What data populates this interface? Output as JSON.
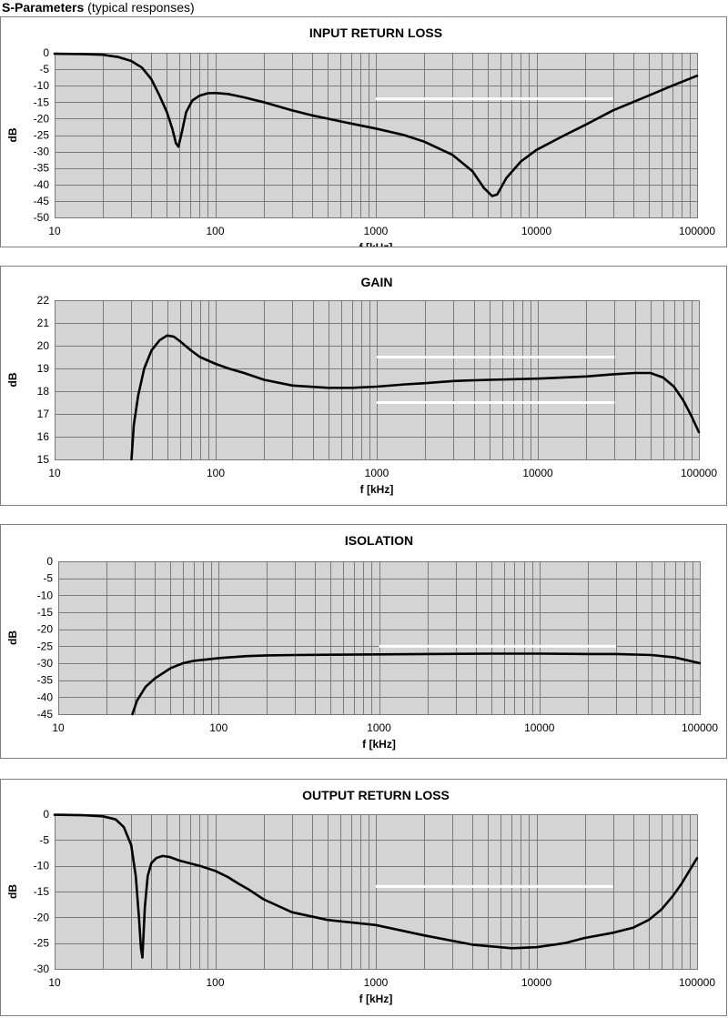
{
  "header": {
    "title": "S-Parameters",
    "subtitle": "(typical responses)"
  },
  "colors": {
    "plot_bg": "#d4d4d4",
    "grid": "#7a7a7a",
    "curve": "#000000",
    "limit_line": "#ffffff"
  },
  "chart_data": [
    {
      "type": "line",
      "title": "INPUT RETURN LOSS",
      "xlabel": "f [kHz]",
      "ylabel": "dB",
      "x_scale": "log",
      "xlim": [
        10,
        100000
      ],
      "x_ticks": [
        "10",
        "100",
        "1000",
        "10000",
        "100000"
      ],
      "ylim": [
        -50,
        0
      ],
      "y_ticks": [
        "0",
        "-5",
        "-10",
        "-15",
        "-20",
        "-25",
        "-30",
        "-35",
        "-40",
        "-45",
        "-50"
      ],
      "grid": true,
      "legend": "none",
      "series": [
        {
          "x": [
            10,
            15,
            20,
            25,
            30,
            35,
            40,
            45,
            50,
            54,
            57,
            59,
            62,
            66,
            72,
            80,
            90,
            100,
            120,
            150,
            200,
            300,
            400,
            500,
            700,
            1000,
            1500,
            2000,
            3000,
            4000,
            4700,
            5300,
            5700,
            6500,
            8000,
            10000,
            15000,
            20000,
            30000,
            50000,
            70000,
            100000
          ],
          "y": [
            -0.3,
            -0.4,
            -0.6,
            -1.3,
            -2.5,
            -4.5,
            -8,
            -13,
            -18,
            -23,
            -27.5,
            -28.5,
            -24,
            -18,
            -14.5,
            -13,
            -12.3,
            -12.2,
            -12.5,
            -13.5,
            -15,
            -17.5,
            -19,
            -20,
            -21.5,
            -23,
            -25,
            -27,
            -31,
            -36,
            -41,
            -43.5,
            -43,
            -38,
            -33,
            -29.5,
            -25,
            -22,
            -17.5,
            -13,
            -10,
            -7
          ]
        }
      ],
      "limit_lines": [
        {
          "x": [
            1000,
            30000
          ],
          "y": -14
        }
      ]
    },
    {
      "type": "line",
      "title": "GAIN",
      "xlabel": "f [kHz]",
      "ylabel": "dB",
      "x_scale": "log",
      "xlim": [
        10,
        100000
      ],
      "x_ticks": [
        "10",
        "100",
        "1000",
        "10000",
        "100000"
      ],
      "ylim": [
        15,
        22
      ],
      "y_ticks": [
        "22",
        "21",
        "20",
        "19",
        "18",
        "17",
        "16",
        "15"
      ],
      "grid": true,
      "legend": "none",
      "series": [
        {
          "x": [
            30,
            31,
            33,
            36,
            40,
            45,
            50,
            55,
            60,
            70,
            80,
            100,
            120,
            150,
            200,
            300,
            500,
            700,
            1000,
            1500,
            2000,
            3000,
            5000,
            10000,
            20000,
            30000,
            40000,
            50000,
            60000,
            70000,
            80000,
            90000,
            100000
          ],
          "y": [
            15,
            16.5,
            17.8,
            19,
            19.8,
            20.25,
            20.45,
            20.4,
            20.2,
            19.8,
            19.5,
            19.2,
            19,
            18.8,
            18.5,
            18.25,
            18.15,
            18.15,
            18.2,
            18.3,
            18.35,
            18.45,
            18.5,
            18.55,
            18.65,
            18.75,
            18.8,
            18.8,
            18.6,
            18.2,
            17.6,
            16.9,
            16.2
          ]
        }
      ],
      "limit_lines": [
        {
          "x": [
            1000,
            30000
          ],
          "y": 19.5
        },
        {
          "x": [
            1000,
            30000
          ],
          "y": 17.5
        }
      ]
    },
    {
      "type": "line",
      "title": "ISOLATION",
      "xlabel": "f [kHz]",
      "ylabel": "dB",
      "x_scale": "log",
      "xlim": [
        10,
        100000
      ],
      "x_ticks": [
        "10",
        "100",
        "1000",
        "10000",
        "100000"
      ],
      "ylim": [
        -45,
        0
      ],
      "y_ticks": [
        "0",
        "-5",
        "-10",
        "-15",
        "-20",
        "-25",
        "-30",
        "-35",
        "-40",
        "-45"
      ],
      "grid": true,
      "legend": "none",
      "series": [
        {
          "x": [
            29,
            31,
            35,
            40,
            50,
            60,
            70,
            100,
            150,
            200,
            300,
            500,
            1000,
            2000,
            5000,
            10000,
            20000,
            30000,
            50000,
            70000,
            100000
          ],
          "y": [
            -45,
            -41,
            -37,
            -34.5,
            -31.5,
            -30,
            -29.3,
            -28.5,
            -27.9,
            -27.7,
            -27.6,
            -27.5,
            -27.4,
            -27.3,
            -27.2,
            -27.2,
            -27.3,
            -27.3,
            -27.6,
            -28.3,
            -30
          ]
        }
      ],
      "limit_lines": [
        {
          "x": [
            1000,
            30000
          ],
          "y": -25
        }
      ]
    },
    {
      "type": "line",
      "title": "OUTPUT RETURN LOSS",
      "xlabel": "f [kHz]",
      "ylabel": "dB",
      "x_scale": "log",
      "xlim": [
        10,
        100000
      ],
      "x_ticks": [
        "10",
        "100",
        "1000",
        "10000",
        "100000"
      ],
      "ylim": [
        -30,
        0
      ],
      "y_ticks": [
        "0",
        "-5",
        "-10",
        "-15",
        "-20",
        "-25",
        "-30"
      ],
      "grid": true,
      "legend": "none",
      "series": [
        {
          "x": [
            10,
            15,
            20,
            24,
            27,
            30,
            32,
            33.5,
            34.5,
            35.2,
            36.5,
            38,
            40,
            43,
            47,
            52,
            60,
            80,
            100,
            120,
            140,
            160,
            200,
            300,
            500,
            1000,
            2000,
            4000,
            7000,
            10000,
            15000,
            20000,
            30000,
            40000,
            50000,
            60000,
            70000,
            80000,
            100000
          ],
          "y": [
            -0.1,
            -0.2,
            -0.4,
            -1,
            -2.5,
            -6,
            -12,
            -20,
            -26,
            -27.8,
            -18,
            -12,
            -9.5,
            -8.5,
            -8.1,
            -8.3,
            -9,
            -10,
            -11,
            -12.2,
            -13.5,
            -14.5,
            -16.5,
            -19,
            -20.5,
            -21.5,
            -23.5,
            -25.3,
            -26,
            -25.8,
            -25,
            -24,
            -23,
            -22,
            -20.5,
            -18.5,
            -16,
            -13.5,
            -8.5
          ]
        }
      ],
      "limit_lines": [
        {
          "x": [
            1000,
            30000
          ],
          "y": -14
        }
      ]
    }
  ]
}
